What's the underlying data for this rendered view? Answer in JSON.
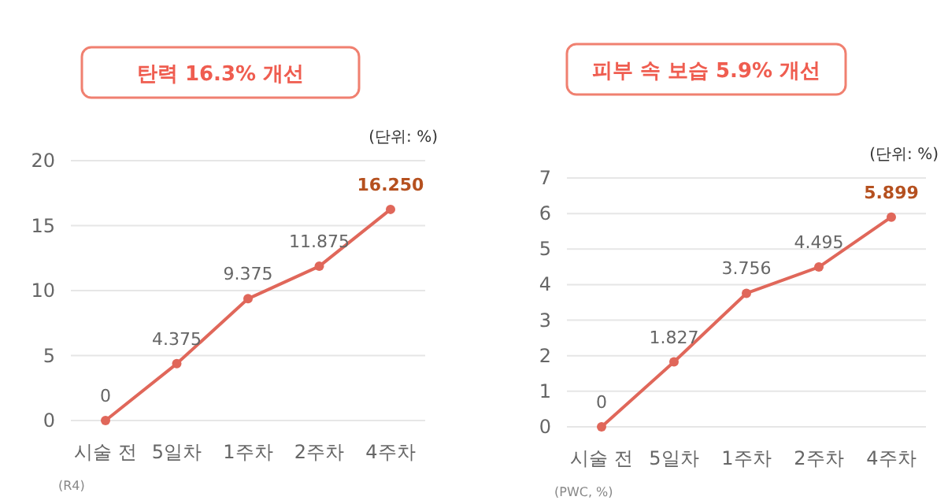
{
  "chart_data": [
    {
      "type": "line",
      "title": "탄력 16.3% 개선",
      "ylabel": "(단위: %)",
      "categories": [
        "시술 전",
        "5일차",
        "1주차",
        "2주차",
        "4주차"
      ],
      "series": [
        {
          "color": "#e0675a",
          "values": [
            0,
            4.375,
            9.375,
            11.875,
            16.25
          ],
          "value_labels": [
            "0",
            "4.375",
            "9.375",
            "11.875",
            "16.250"
          ]
        }
      ],
      "ylim": [
        0,
        20
      ],
      "yticks": [
        0,
        5,
        10,
        15,
        20
      ],
      "grid": "y",
      "marker": "circle",
      "annotations": [
        "(R4)"
      ]
    },
    {
      "type": "line",
      "title": "피부 속 보습 5.9% 개선",
      "ylabel": "(단위: %)",
      "categories": [
        "시술 전",
        "5일차",
        "1주차",
        "2주차",
        "4주차"
      ],
      "series": [
        {
          "color": "#e0675a",
          "values": [
            0,
            1.827,
            3.756,
            4.495,
            5.899
          ],
          "value_labels": [
            "0",
            "1.827",
            "3.756",
            "4.495",
            "5.899"
          ]
        }
      ],
      "ylim": [
        0,
        7
      ],
      "yticks": [
        0,
        1,
        2,
        3,
        4,
        5,
        6,
        7
      ],
      "grid": "y",
      "marker": "circle",
      "annotations": [
        "(PWC, %)"
      ]
    }
  ]
}
